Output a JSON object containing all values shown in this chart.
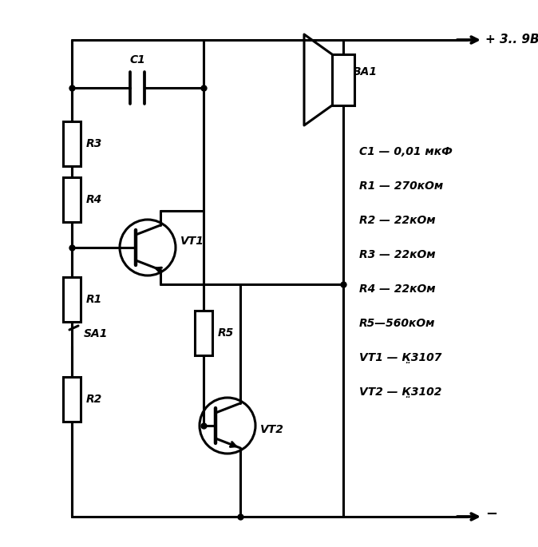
{
  "bg_color": "#ffffff",
  "line_color": "#000000",
  "line_width": 2.2,
  "fig_width": 6.74,
  "fig_height": 6.85,
  "component_labels": {
    "C1": "C1",
    "R3": "R3",
    "R4": "R4",
    "VT1": "VT1",
    "R1": "R1",
    "SA1": "SA1",
    "R2": "R2",
    "R5": "R5",
    "VT2": "VT2",
    "BA1": "BA1"
  },
  "parts_list": [
    "C1 — 0,01 мкФ",
    "R1 — 270кОм",
    "R2 — 22кОм",
    "R3 — 22кОм",
    "R4 — 22кОм",
    "R5—560кОм",
    "VT1 — К̤3107",
    "VT2 — К̤3102"
  ],
  "power_label": "+ 3.. 9В",
  "gnd_label": "−"
}
